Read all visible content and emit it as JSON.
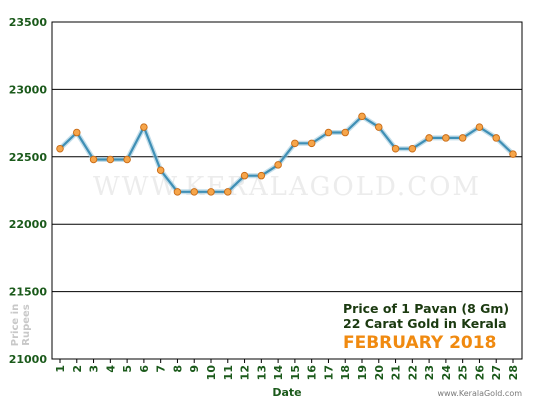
{
  "chart_data": {
    "type": "line",
    "title": "",
    "xlabel": "Date",
    "ylabel": "Price in Rupees",
    "x": [
      1,
      2,
      3,
      4,
      5,
      6,
      7,
      8,
      9,
      10,
      11,
      12,
      13,
      14,
      15,
      16,
      17,
      18,
      19,
      20,
      21,
      22,
      23,
      24,
      25,
      26,
      27,
      28
    ],
    "x_tick_labels": [
      "1",
      "2",
      "3",
      "4",
      "5",
      "6",
      "7",
      "8",
      "9",
      "10",
      "11",
      "12",
      "13",
      "14",
      "15",
      "16",
      "17",
      "18",
      "19",
      "20",
      "21",
      "22",
      "23",
      "24",
      "25",
      "26",
      "27",
      "28"
    ],
    "series": [
      {
        "values": [
          22560,
          22680,
          22480,
          22480,
          22480,
          22720,
          22400,
          22240,
          22240,
          22240,
          22240,
          22360,
          22360,
          22440,
          22600,
          22600,
          22680,
          22680,
          22800,
          22720,
          22560,
          22560,
          22640,
          22640,
          22640,
          22720,
          22640,
          22520
        ]
      }
    ],
    "ylim": [
      21000,
      23500
    ],
    "y_ticks": [
      21000,
      21500,
      22000,
      22500,
      23000,
      23500
    ],
    "y_tick_labels": [
      "21000",
      "21500",
      "22000",
      "22500",
      "23000",
      "23500"
    ],
    "grid": true,
    "colors": {
      "line": "#3f8fb5",
      "marker_fill": "#f6a54a",
      "marker_stroke": "#c86a14",
      "grid": "#000000",
      "annotation_dark": "#1b3a10",
      "annotation_accent": "#f08a10"
    },
    "annotation": {
      "line1": "Price of 1 Pavan (8 Gm)",
      "line2": "22 Carat Gold in Kerala",
      "line3": "FEBRUARY 2018"
    },
    "watermark": "WWW.KERALAGOLD.COM",
    "footer": "www.KeralaGold.com"
  }
}
